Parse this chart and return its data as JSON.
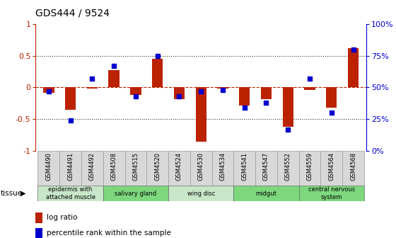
{
  "title": "GDS444 / 9524",
  "samples": [
    "GSM4490",
    "GSM4491",
    "GSM4492",
    "GSM4508",
    "GSM4515",
    "GSM4520",
    "GSM4524",
    "GSM4530",
    "GSM4534",
    "GSM4541",
    "GSM4547",
    "GSM4552",
    "GSM4559",
    "GSM4564",
    "GSM4568"
  ],
  "log_ratio": [
    -0.08,
    -0.35,
    -0.02,
    0.27,
    -0.12,
    0.45,
    -0.18,
    -0.85,
    -0.02,
    -0.28,
    -0.18,
    -0.62,
    -0.04,
    -0.32,
    0.62
  ],
  "percentile": [
    47,
    24,
    57,
    67,
    43,
    75,
    43,
    47,
    48,
    34,
    38,
    17,
    57,
    30,
    80
  ],
  "tissue_groups": [
    {
      "label": "epidermis with\nattached muscle",
      "start": 0,
      "end": 3,
      "color": "#c8e6c8"
    },
    {
      "label": "salivary gland",
      "start": 3,
      "end": 6,
      "color": "#7dd87d"
    },
    {
      "label": "wing disc",
      "start": 6,
      "end": 9,
      "color": "#c8e6c8"
    },
    {
      "label": "midgut",
      "start": 9,
      "end": 12,
      "color": "#7dd87d"
    },
    {
      "label": "central nervous\nsystem",
      "start": 12,
      "end": 15,
      "color": "#7dd87d"
    }
  ],
  "bar_color": "#bb2200",
  "dot_color": "#0000cc",
  "ylim": [
    -1,
    1
  ],
  "yticks": [
    -1,
    -0.5,
    0,
    0.5,
    1
  ],
  "ytick_labels": [
    "-1",
    "-0.5",
    "0",
    "0.5",
    "1"
  ],
  "y2ticks": [
    0,
    25,
    50,
    75,
    100
  ],
  "y2ticklabels": [
    "0%",
    "25%",
    "50%",
    "75%",
    "100%"
  ],
  "hline_y": 0,
  "dotted_lines": [
    -0.5,
    0.5
  ],
  "bar_width": 0.5,
  "label_box_color": "#d8d8d8",
  "label_box_edge": "#999999"
}
